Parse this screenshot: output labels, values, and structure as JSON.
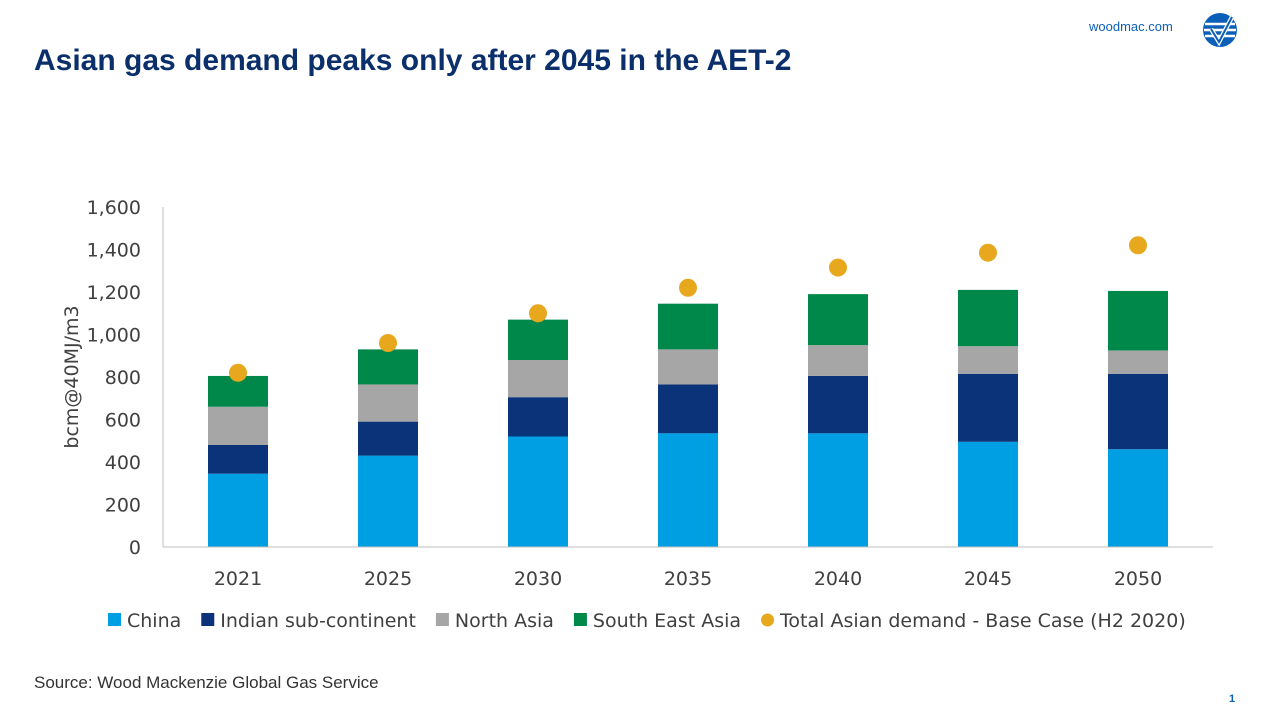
{
  "header": {
    "title": "Asian gas demand peaks only after 2045 in the AET-2",
    "site": "woodmac.com"
  },
  "footer": {
    "source": "Source: Wood Mackenzie Global Gas Service",
    "page": "1"
  },
  "colors": {
    "china": "#009fe3",
    "indian": "#0b337a",
    "north_asia": "#a6a6a6",
    "south_east_asia": "#00874a",
    "total": "#e8a81d",
    "brand": "#0b5fb8"
  },
  "chart_data": {
    "type": "bar",
    "stacked": true,
    "title": "",
    "xlabel": "",
    "ylabel": "bcm@40MJ/m3",
    "ylim": [
      0,
      1600
    ],
    "yticks": [
      "0",
      "200",
      "400",
      "600",
      "800",
      "1,000",
      "1,200",
      "1,400",
      "1,600"
    ],
    "categories": [
      "2021",
      "2025",
      "2030",
      "2035",
      "2040",
      "2045",
      "2050"
    ],
    "series": [
      {
        "name": "China",
        "color": "#009fe3",
        "values": [
          345,
          430,
          520,
          535,
          535,
          495,
          460
        ]
      },
      {
        "name": "Indian sub-continent",
        "color": "#0b337a",
        "values": [
          135,
          160,
          185,
          230,
          270,
          320,
          355
        ]
      },
      {
        "name": "North Asia",
        "color": "#a6a6a6",
        "values": [
          180,
          175,
          175,
          165,
          145,
          130,
          110
        ]
      },
      {
        "name": "South East Asia",
        "color": "#00874a",
        "values": [
          145,
          165,
          190,
          215,
          240,
          265,
          280
        ]
      }
    ],
    "overlay": {
      "name": "Total Asian demand - Base Case (H2 2020)",
      "color": "#e8a81d",
      "type": "scatter",
      "values": [
        820,
        960,
        1100,
        1220,
        1315,
        1385,
        1420
      ]
    },
    "grid": false,
    "legend_position": "bottom"
  }
}
